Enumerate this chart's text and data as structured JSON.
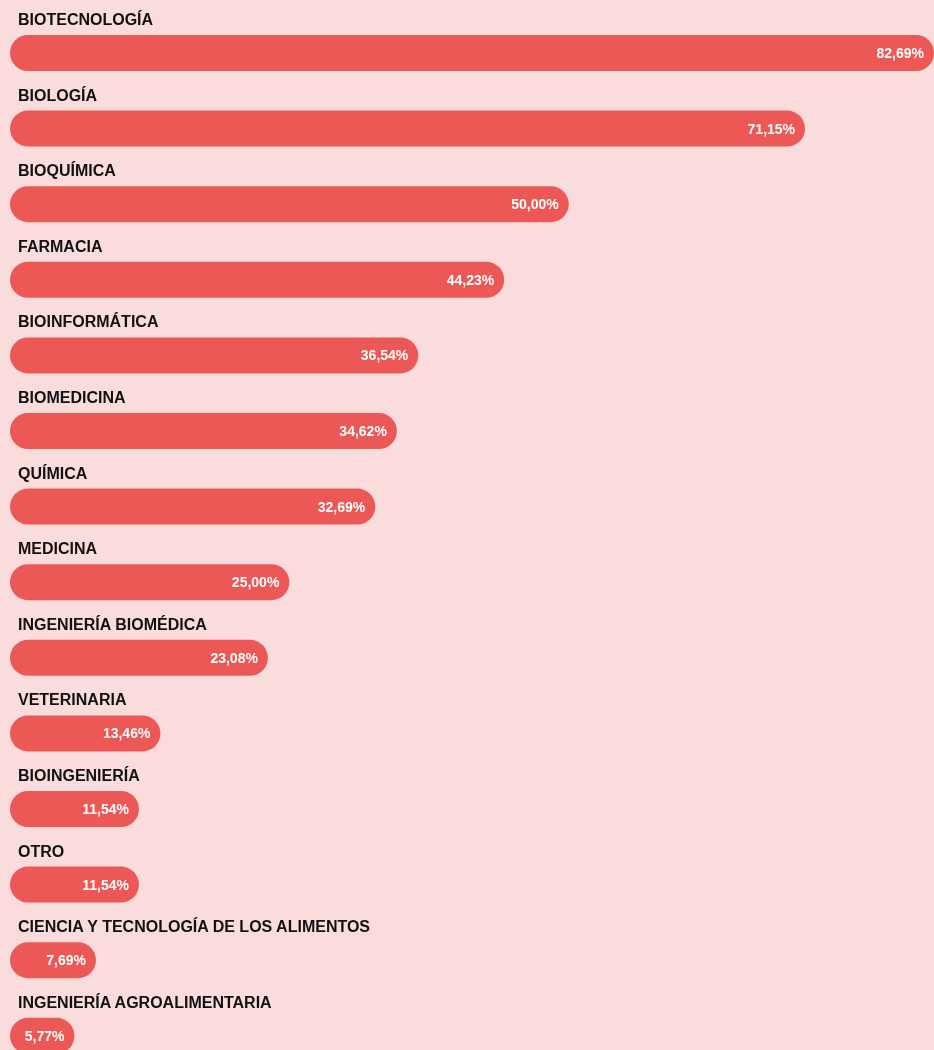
{
  "chart_data": {
    "type": "bar",
    "orientation": "horizontal",
    "categories": [
      "BIOTECNOLOGÍA",
      "BIOLOGÍA",
      "BIOQUÍMICA",
      "FARMACIA",
      "BIOINFORMÁTICA",
      "BIOMEDICINA",
      "QUÍMICA",
      "MEDICINA",
      "INGENIERÍA BIOMÉDICA",
      "VETERINARIA",
      "BIOINGENIERÍA",
      "OTRO",
      "CIENCIA Y TECNOLOGÍA DE LOS ALIMENTOS",
      "INGENIERÍA AGROALIMENTARIA"
    ],
    "values": [
      82.69,
      71.15,
      50.0,
      44.23,
      36.54,
      34.62,
      32.69,
      25.0,
      23.08,
      13.46,
      11.54,
      11.54,
      7.69,
      5.77
    ],
    "value_labels": [
      "82,69%",
      "71,15%",
      "50,00%",
      "44,23%",
      "36,54%",
      "34,62%",
      "32,69%",
      "25,00%",
      "23,08%",
      "13,46%",
      "11,54%",
      "11,54%",
      "7,69%",
      "5,77%"
    ],
    "color": "#eb5855"
  }
}
